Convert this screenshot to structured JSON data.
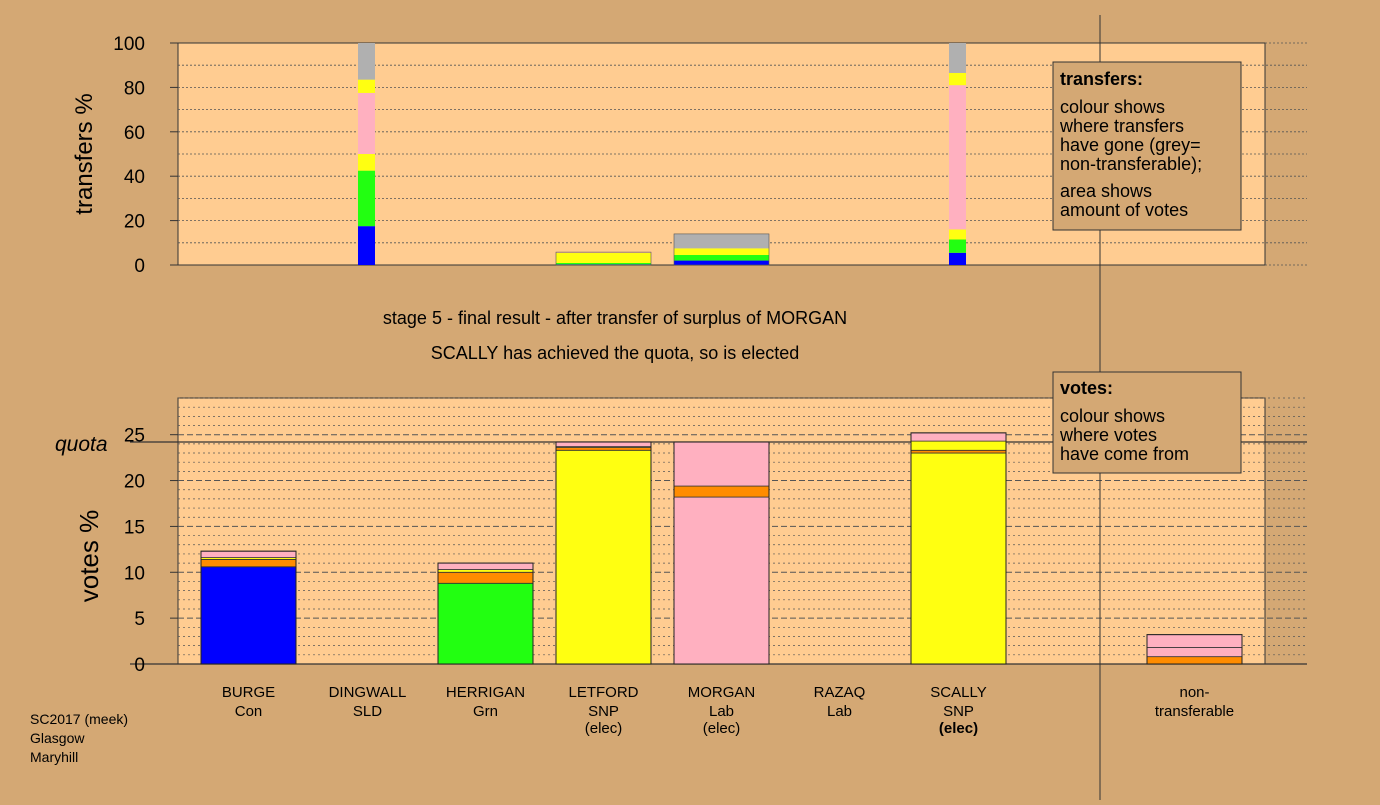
{
  "stage_title": "stage 5 - final result - after transfer of surplus of MORGAN",
  "stage_subtitle": "SCALLY has achieved the quota, so is elected",
  "footer_lines": [
    "SC2017 (meek)",
    "Glasgow",
    "Maryhill"
  ],
  "colors": {
    "background": "#d4a874",
    "plot_bg": "#ffcc91",
    "Con": "#0000ff",
    "SLD": "#ff8c00",
    "Grn": "#22ff11",
    "SNP": "#ffff11",
    "Lab": "#ffb0c0",
    "nontransferable": "#b0b0b0"
  },
  "legends": {
    "transfers": {
      "title": "transfers:",
      "lines_a": [
        "colour shows",
        "where transfers",
        "have gone (grey=",
        "non-transferable);"
      ],
      "lines_b": [
        "area shows",
        "amount of votes"
      ]
    },
    "votes": {
      "title": "votes:",
      "lines": [
        "colour shows",
        "where votes",
        "have come from"
      ]
    }
  },
  "chart_data": [
    {
      "type": "bar",
      "stacked": true,
      "ylabel": "transfers %",
      "ylim": [
        0,
        100
      ],
      "yticks": [
        0,
        20,
        40,
        60,
        80,
        100
      ],
      "categories": [
        "BURGE",
        "DINGWALL",
        "HERRIGAN",
        "LETFORD",
        "MORGAN",
        "RAZAQ",
        "SCALLY"
      ],
      "bars": [
        {
          "category": "DINGWALL",
          "segments": [
            {
              "party": "Con",
              "value": 17.5
            },
            {
              "party": "Grn",
              "value": 25
            },
            {
              "party": "SNP",
              "value": 7.5
            },
            {
              "party": "Lab",
              "value": 27.5
            },
            {
              "party": "SNP",
              "value": 6
            },
            {
              "party": "nontransferable",
              "value": 16.5
            }
          ]
        },
        {
          "category": "LETFORD",
          "segments": [
            {
              "party": "Con",
              "value": 0.3
            },
            {
              "party": "Grn",
              "value": 0.6
            },
            {
              "party": "SNP",
              "value": 4.6
            },
            {
              "party": "Lab",
              "value": 0.3
            }
          ]
        },
        {
          "category": "MORGAN",
          "segments": [
            {
              "party": "Con",
              "value": 2
            },
            {
              "party": "Grn",
              "value": 2.5
            },
            {
              "party": "SNP",
              "value": 3
            },
            {
              "party": "nontransferable",
              "value": 6.5
            }
          ]
        },
        {
          "category": "SCALLY",
          "segments": [
            {
              "party": "Con",
              "value": 5.5
            },
            {
              "party": "Grn",
              "value": 6
            },
            {
              "party": "SNP",
              "value": 4.5
            },
            {
              "party": "Lab",
              "value": 65
            },
            {
              "party": "SNP",
              "value": 5.5
            },
            {
              "party": "nontransferable",
              "value": 13.5
            }
          ]
        }
      ]
    },
    {
      "type": "bar",
      "stacked": true,
      "ylabel": "votes %",
      "ylim": [
        0,
        29
      ],
      "yticks": [
        0,
        5,
        10,
        15,
        20,
        25
      ],
      "quota": 24.2,
      "quota_label": "quota",
      "candidates": [
        {
          "name": "BURGE",
          "party": "Con",
          "status": "",
          "segments": [
            {
              "party": "Con",
              "value": 10.6
            },
            {
              "party": "SLD",
              "value": 0.8
            },
            {
              "party": "SNP",
              "value": 0.2
            },
            {
              "party": "Lab",
              "value": 0.7
            }
          ]
        },
        {
          "name": "DINGWALL",
          "party": "SLD",
          "status": "",
          "segments": []
        },
        {
          "name": "HERRIGAN",
          "party": "Grn",
          "status": "",
          "segments": [
            {
              "party": "Grn",
              "value": 8.8
            },
            {
              "party": "SLD",
              "value": 1.2
            },
            {
              "party": "SNP",
              "value": 0.3
            },
            {
              "party": "Lab",
              "value": 0.7
            }
          ]
        },
        {
          "name": "LETFORD",
          "party": "SNP",
          "status": "(elec)",
          "segments": [
            {
              "party": "SNP",
              "value": 23.3
            },
            {
              "party": "SLD",
              "value": 0.3
            },
            {
              "party": "SNP",
              "value": 0.1
            },
            {
              "party": "Lab",
              "value": 0.5
            }
          ]
        },
        {
          "name": "MORGAN",
          "party": "Lab",
          "status": "(elec)",
          "segments": [
            {
              "party": "Lab",
              "value": 18.2
            },
            {
              "party": "SLD",
              "value": 1.2
            },
            {
              "party": "Lab",
              "value": 4.8
            }
          ]
        },
        {
          "name": "RAZAQ",
          "party": "Lab",
          "status": "",
          "segments": []
        },
        {
          "name": "SCALLY",
          "party": "SNP",
          "status": "(elec)",
          "status_bold": true,
          "segments": [
            {
              "party": "SNP",
              "value": 23.0
            },
            {
              "party": "SLD",
              "value": 0.3
            },
            {
              "party": "SNP",
              "value": 1.0
            },
            {
              "party": "Lab",
              "value": 0.9
            }
          ]
        },
        {
          "name": "non-\ntransferable",
          "party": "",
          "status": "",
          "segments": [
            {
              "party": "SLD",
              "value": 0.8
            },
            {
              "party": "Lab",
              "value": 1.0
            },
            {
              "party": "Lab",
              "value": 1.4
            }
          ]
        }
      ]
    }
  ]
}
